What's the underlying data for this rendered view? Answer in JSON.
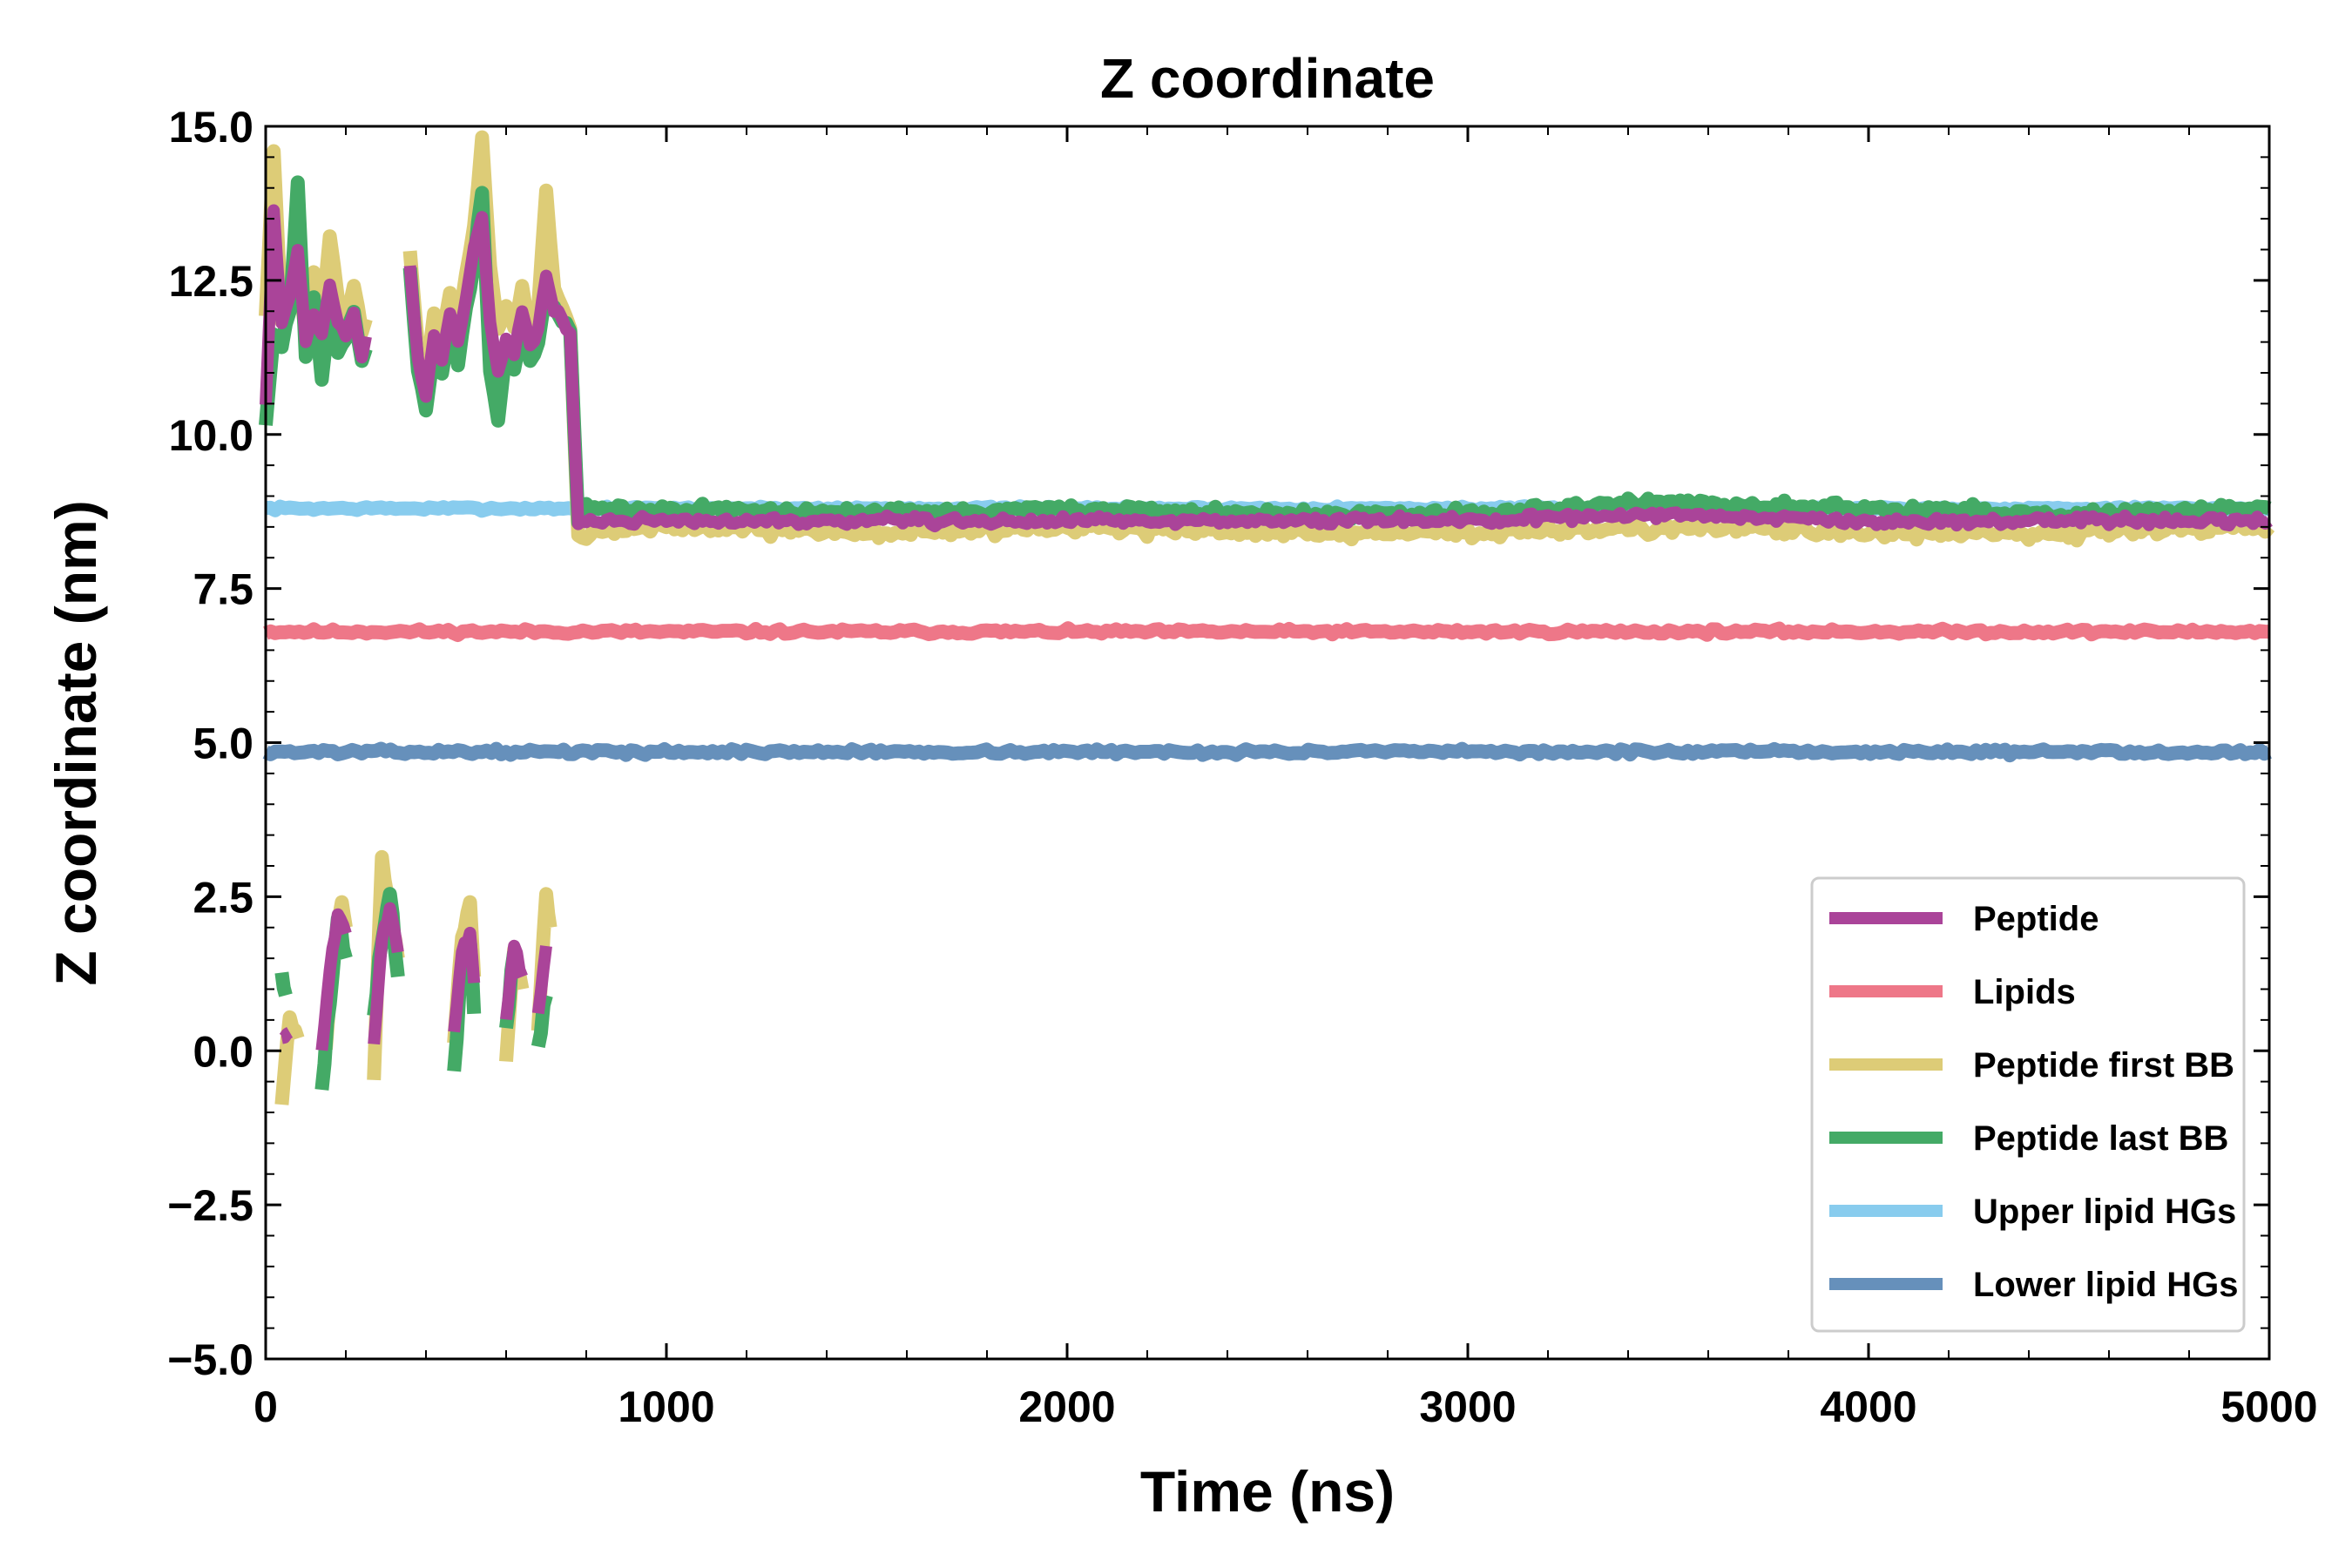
{
  "chart_data": {
    "type": "line",
    "title": "Z coordinate",
    "xlabel": "Time (ns)",
    "ylabel": "Z coordinate (nm)",
    "xlim": [
      0,
      5000
    ],
    "ylim": [
      -5.0,
      15.0
    ],
    "xticks": [
      0,
      1000,
      2000,
      3000,
      4000,
      5000
    ],
    "xtick_labels": [
      "0",
      "1000",
      "2000",
      "3000",
      "4000",
      "5000"
    ],
    "yticks": [
      -5.0,
      -2.5,
      0.0,
      2.5,
      5.0,
      7.5,
      10.0,
      12.5,
      15.0
    ],
    "ytick_labels": [
      "−5.0",
      "−2.5",
      "0.0",
      "2.5",
      "5.0",
      "7.5",
      "10.0",
      "12.5",
      "15.0"
    ],
    "grid": false,
    "legend_position": "lower-right",
    "series": [
      {
        "name": "Upper lipid HGs",
        "color": "#88ccee",
        "x": [
          0,
          5000
        ],
        "y": [
          8.8,
          8.8
        ],
        "summary": "roughly constant near 8.8 nm for the entire run"
      },
      {
        "name": "Lipids",
        "color": "#ee7788",
        "x": [
          0,
          5000
        ],
        "y": [
          6.8,
          6.8
        ],
        "summary": "roughly constant near 6.8 nm"
      },
      {
        "name": "Lower lipid HGs",
        "color": "#6690bb",
        "x": [
          0,
          5000
        ],
        "y": [
          4.85,
          4.85
        ],
        "summary": "roughly constant near 4.85 nm"
      },
      {
        "name": "Peptide first BB",
        "color": "#ddcc77",
        "x": [
          0,
          20,
          40,
          60,
          80,
          100,
          120,
          140,
          160,
          180,
          200,
          220,
          240,
          260,
          280,
          300,
          320,
          340,
          360,
          380,
          400,
          420,
          440,
          460,
          480,
          500,
          520,
          540,
          560,
          580,
          600,
          620,
          640,
          660,
          680,
          700,
          720,
          740,
          760,
          780,
          800,
          1000,
          1500,
          2000,
          2500,
          3000,
          3500,
          4000,
          4500,
          5000
        ],
        "y": [
          12.0,
          14.6,
          11.8,
          12.2,
          12.8,
          11.6,
          12.6,
          12.0,
          13.2,
          12.2,
          11.9,
          12.4,
          11.7,
          12.0,
          null,
          null,
          null,
          null,
          13.0,
          11.5,
          10.8,
          12.0,
          11.6,
          12.3,
          11.8,
          12.6,
          13.4,
          14.8,
          12.8,
          11.6,
          12.1,
          11.8,
          12.4,
          11.7,
          12.0,
          14.0,
          12.4,
          12.0,
          11.8,
          8.3,
          8.4,
          8.5,
          8.4,
          8.5,
          8.4,
          8.4,
          8.5,
          8.4,
          8.4,
          8.5
        ],
        "summary": "fluctuates between about 11 and 15 nm with periodic-image dips to about -1 to 3 nm before ~780 ns, then settles near 8.4 nm"
      },
      {
        "name": "Peptide last BB",
        "color": "#44aa66",
        "x": [
          0,
          20,
          40,
          60,
          80,
          100,
          120,
          140,
          160,
          180,
          200,
          220,
          240,
          260,
          280,
          300,
          320,
          340,
          360,
          380,
          400,
          420,
          440,
          460,
          480,
          500,
          520,
          540,
          560,
          580,
          600,
          620,
          640,
          660,
          680,
          700,
          720,
          740,
          760,
          780,
          800,
          1000,
          1500,
          2000,
          2500,
          3000,
          3500,
          4000,
          4500,
          5000
        ],
        "y": [
          10.2,
          11.6,
          11.4,
          12.0,
          14.0,
          11.3,
          12.2,
          11.0,
          12.0,
          11.4,
          11.6,
          12.0,
          11.2,
          11.6,
          null,
          null,
          null,
          null,
          12.8,
          11.0,
          10.4,
          11.4,
          11.0,
          11.8,
          11.2,
          12.0,
          12.8,
          14.0,
          11.0,
          10.2,
          11.4,
          11.0,
          11.8,
          11.2,
          11.5,
          12.2,
          12.0,
          11.9,
          11.6,
          8.6,
          8.8,
          8.8,
          8.7,
          8.8,
          8.7,
          8.7,
          8.9,
          8.8,
          8.7,
          8.8
        ],
        "summary": "fluctuates between about 10 and 14 nm with periodic-image dips to about -0.5 to 2.5 nm before ~780 ns, then settles near 8.8 nm"
      },
      {
        "name": "Peptide",
        "color": "#aa4499",
        "x": [
          0,
          20,
          40,
          60,
          80,
          100,
          120,
          140,
          160,
          180,
          200,
          220,
          240,
          260,
          280,
          300,
          320,
          340,
          360,
          380,
          400,
          420,
          440,
          460,
          480,
          500,
          520,
          540,
          560,
          580,
          600,
          620,
          640,
          660,
          680,
          700,
          720,
          740,
          760,
          780,
          800,
          1000,
          1500,
          2000,
          2500,
          3000,
          3500,
          4000,
          4500,
          5000
        ],
        "y": [
          10.5,
          13.6,
          11.8,
          12.2,
          13.0,
          11.5,
          12.0,
          11.6,
          12.4,
          11.8,
          11.6,
          12.0,
          11.3,
          11.8,
          null,
          null,
          null,
          null,
          12.8,
          11.2,
          10.6,
          11.6,
          11.2,
          12.0,
          11.5,
          12.2,
          13.0,
          13.6,
          11.8,
          11.0,
          11.6,
          11.3,
          12.0,
          11.4,
          11.7,
          12.6,
          12.0,
          11.9,
          11.6,
          8.5,
          8.6,
          8.6,
          8.6,
          8.6,
          8.6,
          8.6,
          8.7,
          8.6,
          8.6,
          8.6
        ],
        "summary": "fluctuates between about 10.5 and 13.6 nm with periodic-image dips to about 0 to 2.5 nm before ~780 ns, then settles near 8.6 nm"
      }
    ],
    "legend": [
      {
        "label": "Peptide",
        "color": "#aa4499"
      },
      {
        "label": "Lipids",
        "color": "#ee7788"
      },
      {
        "label": "Peptide first BB",
        "color": "#ddcc77"
      },
      {
        "label": "Peptide last BB",
        "color": "#44aa66"
      },
      {
        "label": "Upper lipid HGs",
        "color": "#88ccee"
      },
      {
        "label": "Lower lipid HGs",
        "color": "#6690bb"
      }
    ]
  }
}
